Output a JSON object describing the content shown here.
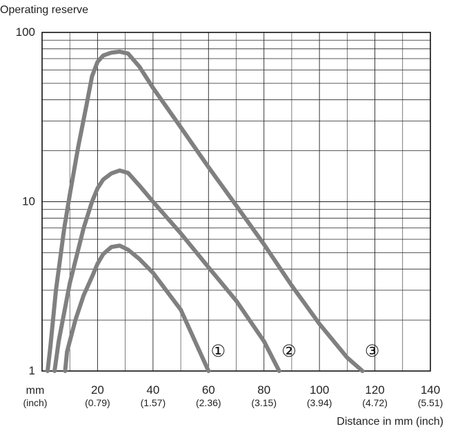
{
  "chart_data": {
    "type": "line",
    "title": "",
    "ylabel": "Operating reserve",
    "xlabel": "Distance in mm (inch)",
    "x_unit": "mm",
    "x_unit_secondary": "(inch)",
    "xlim": [
      0,
      140
    ],
    "ylim": [
      1,
      100
    ],
    "y_scale": "log",
    "grid": true,
    "x_ticks": [
      {
        "mm": "20",
        "inch": "(0.79)"
      },
      {
        "mm": "40",
        "inch": "(1.57)"
      },
      {
        "mm": "60",
        "inch": "(2.36)"
      },
      {
        "mm": "80",
        "inch": "(3.15)"
      },
      {
        "mm": "100",
        "inch": "(3.94)"
      },
      {
        "mm": "120",
        "inch": "(4.72)"
      },
      {
        "mm": "140",
        "inch": "(5.51)"
      }
    ],
    "y_ticks": [
      "1",
      "10",
      "100"
    ],
    "series": [
      {
        "name": "①",
        "color": "#808080",
        "x": [
          8.3,
          9,
          12,
          15,
          18,
          20,
          22,
          25,
          28,
          31,
          35,
          40,
          50,
          60
        ],
        "y": [
          1,
          1.3,
          2,
          2.8,
          3.6,
          4.3,
          4.9,
          5.4,
          5.5,
          5.2,
          4.6,
          3.8,
          2.3,
          1
        ]
      },
      {
        "name": "②",
        "color": "#808080",
        "x": [
          4.5,
          6,
          10,
          15,
          18,
          20,
          22,
          25,
          28,
          31,
          35,
          40,
          50,
          60,
          70,
          80,
          85.5
        ],
        "y": [
          1,
          1.5,
          3.3,
          7,
          10,
          12,
          13.5,
          14.7,
          15.3,
          14.8,
          12.5,
          10,
          6.5,
          4.1,
          2.6,
          1.5,
          1
        ]
      },
      {
        "name": "③",
        "color": "#808080",
        "x": [
          2,
          3,
          5,
          8,
          10,
          13,
          16,
          18,
          20,
          22,
          25,
          28,
          31,
          35,
          40,
          50,
          60,
          70,
          80,
          90,
          100,
          110,
          115.5
        ],
        "y": [
          1,
          1.4,
          3,
          7,
          11,
          21,
          37,
          55,
          67,
          73,
          76,
          77,
          75,
          63,
          47,
          27.5,
          16,
          9.5,
          5.6,
          3.2,
          1.9,
          1.2,
          1
        ]
      }
    ]
  }
}
